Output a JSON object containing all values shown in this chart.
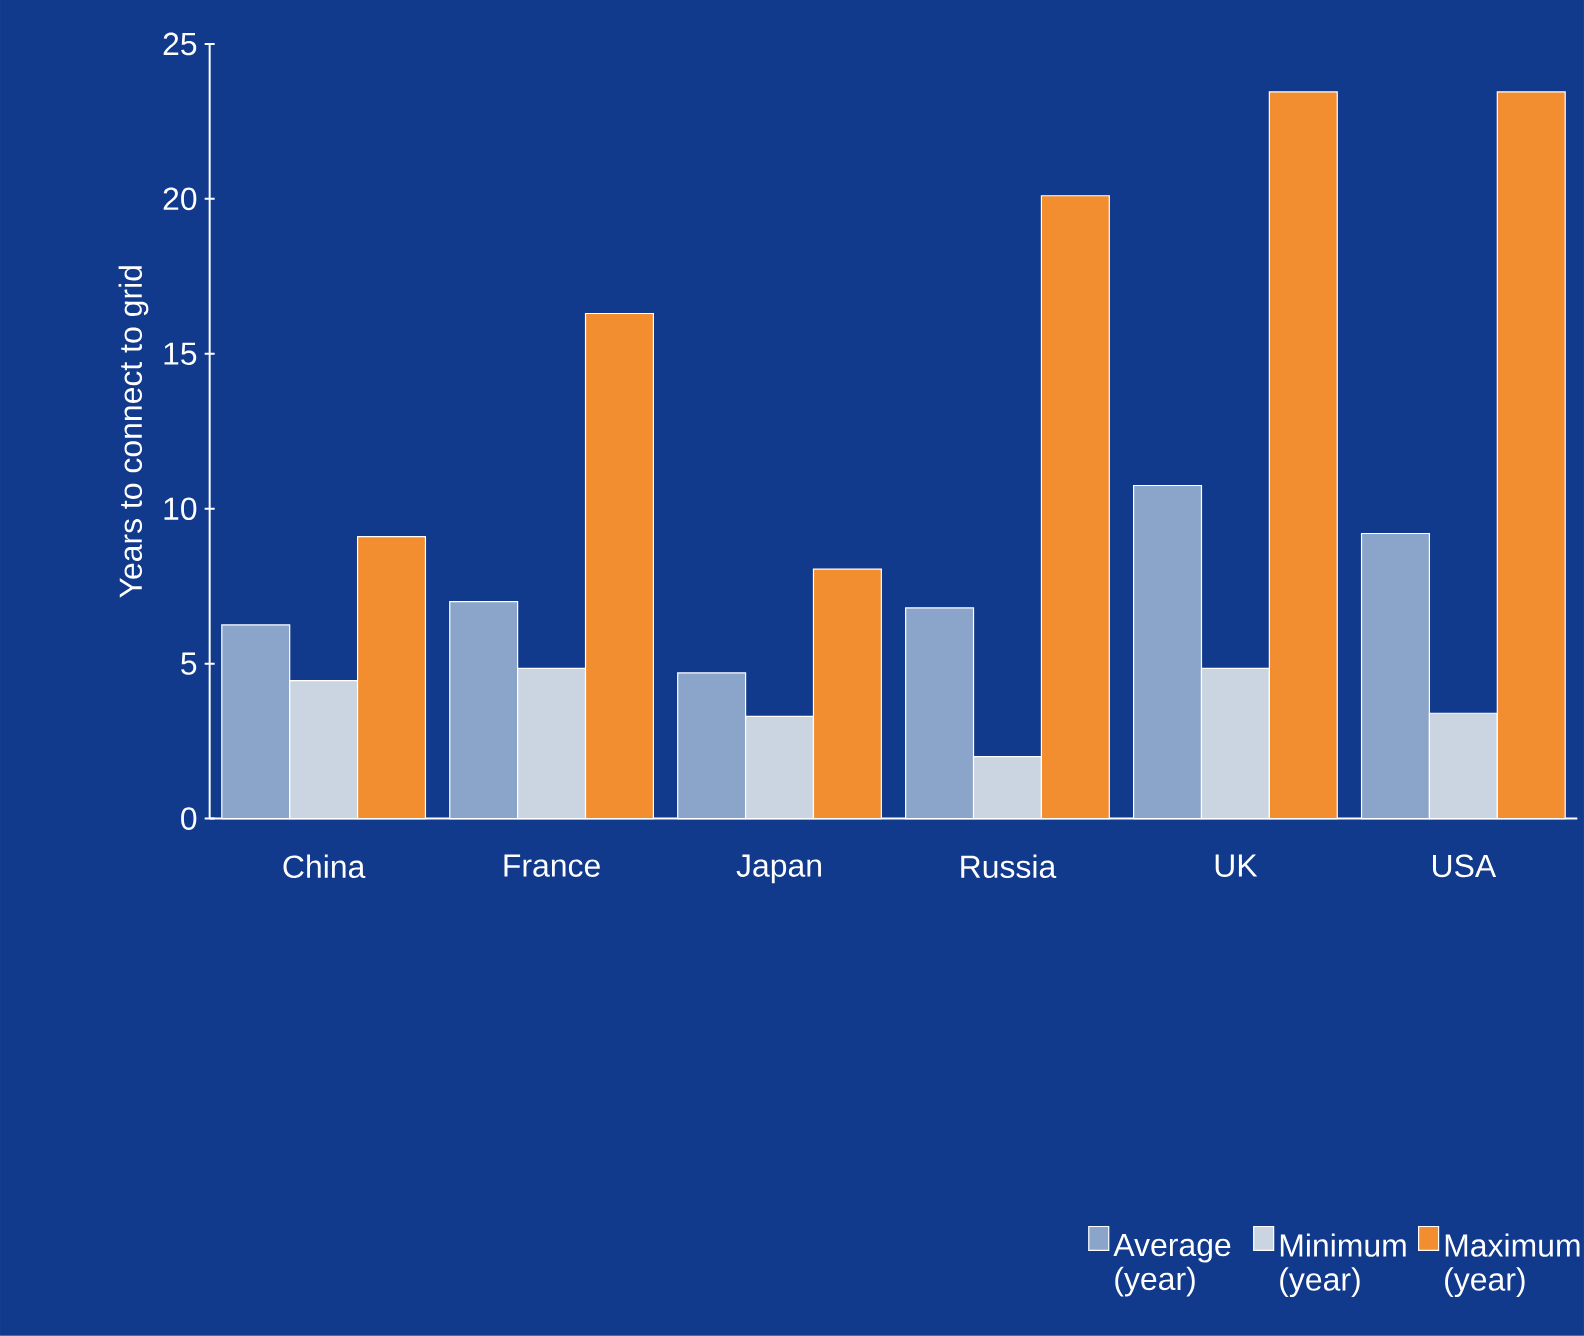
{
  "chart_data": {
    "type": "bar",
    "ylabel": "Years to connect to grid",
    "categories": [
      "China",
      "France",
      "Japan",
      "Russia",
      "UK",
      "USA"
    ],
    "series": [
      {
        "name": "Average (year)",
        "color": "#8aa5c9",
        "values": [
          6.25,
          7.0,
          4.7,
          6.8,
          10.75,
          9.2
        ]
      },
      {
        "name": "Minimum (year)",
        "color": "#cbd5e1",
        "values": [
          4.45,
          4.85,
          3.3,
          2.0,
          4.85,
          3.4
        ]
      },
      {
        "name": "Maximum (year)",
        "color": "#f28e30",
        "values": [
          9.1,
          16.3,
          8.05,
          20.1,
          23.45,
          23.45
        ]
      }
    ],
    "ylim": [
      0,
      25
    ],
    "yticks": [
      0,
      5,
      10,
      15,
      20,
      25
    ],
    "grid": false,
    "legend": "bottom right"
  }
}
